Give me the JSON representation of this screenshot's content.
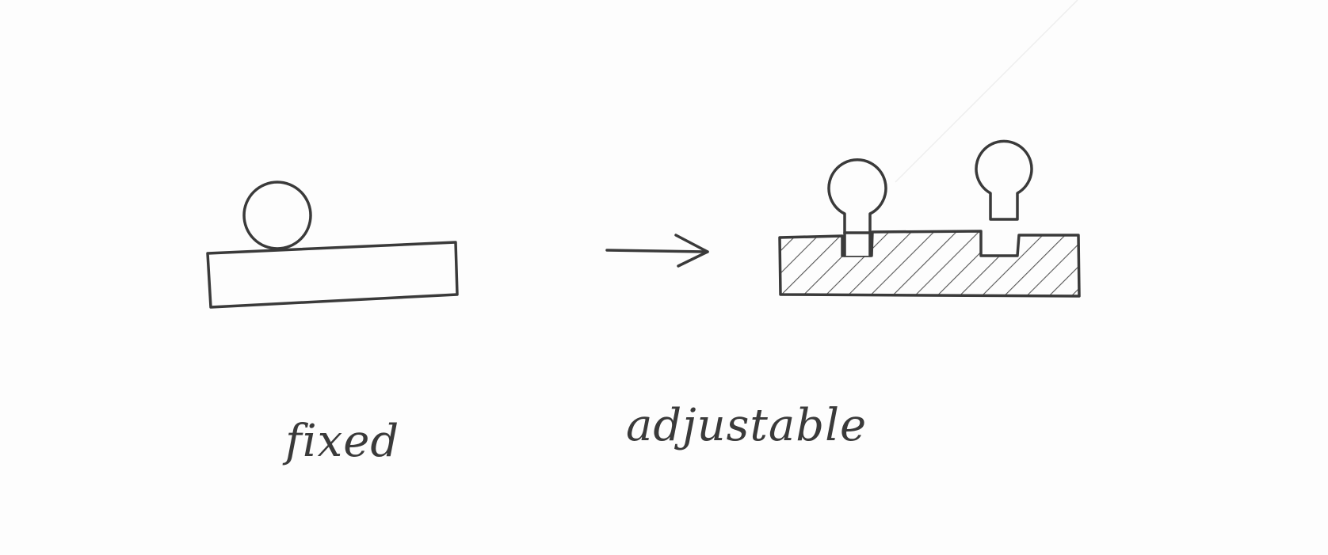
{
  "diagram": {
    "labels": {
      "fixed": "fixed",
      "adjustable": "adjustable"
    },
    "stroke_color": "#3a3a3a",
    "hatch_color": "#555555"
  }
}
